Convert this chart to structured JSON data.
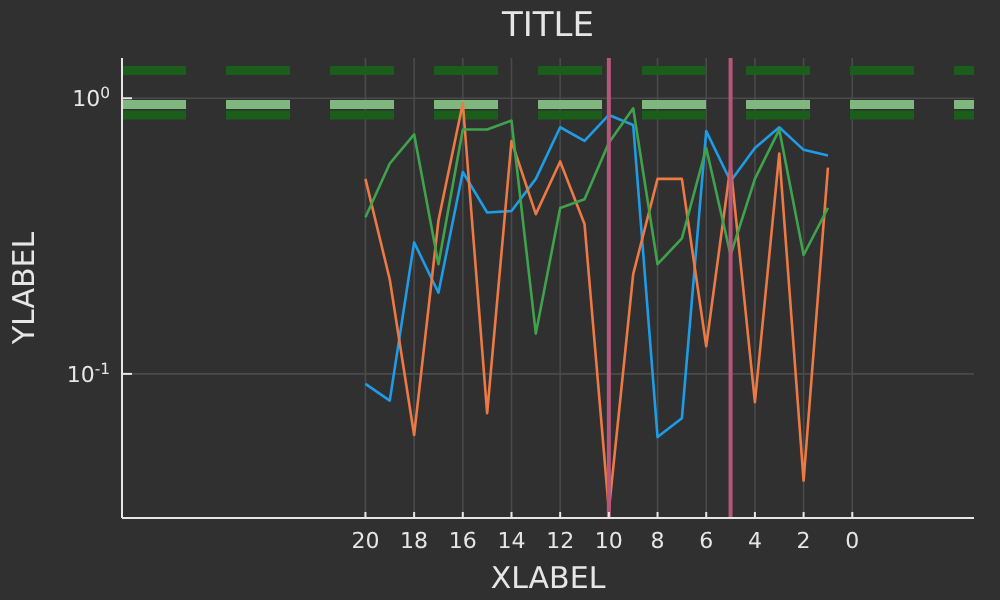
{
  "chart_data": {
    "type": "line",
    "title": "TITLE",
    "xlabel": "XLABEL",
    "ylabel": "YLABEL",
    "log": "y",
    "grid": true,
    "x": [
      20,
      19,
      18,
      17,
      16,
      15,
      14,
      13,
      12,
      11,
      10,
      9,
      8,
      7,
      6,
      5,
      4,
      3,
      2,
      1
    ],
    "series": [
      {
        "color": "#1f9ce6",
        "values": [
          0.092,
          0.08,
          0.3,
          0.197,
          0.54,
          0.385,
          0.39,
          0.51,
          0.785,
          0.7,
          0.87,
          0.8,
          0.059,
          0.069,
          0.76,
          0.5,
          0.66,
          0.785,
          0.65,
          0.62
        ]
      },
      {
        "color": "#ed7a45",
        "values": [
          0.51,
          0.22,
          0.06,
          0.36,
          0.96,
          0.072,
          0.7,
          0.38,
          0.59,
          0.35,
          0.032,
          0.23,
          0.51,
          0.51,
          0.126,
          0.57,
          0.079,
          0.63,
          0.041,
          0.56
        ]
      },
      {
        "color": "#3fa34d",
        "values": [
          0.37,
          0.58,
          0.74,
          0.25,
          0.77,
          0.77,
          0.83,
          0.14,
          0.4,
          0.43,
          0.69,
          0.92,
          0.25,
          0.31,
          0.66,
          0.27,
          0.51,
          0.77,
          0.27,
          0.4
        ]
      }
    ],
    "xlim": [
      30,
      -5
    ],
    "xticks": [
      20,
      18,
      16,
      14,
      12,
      10,
      8,
      6,
      4,
      2,
      0
    ],
    "ylim": [
      0.03,
      1.4
    ],
    "yticks": [
      {
        "value": 1,
        "label": "10$^{0}$"
      },
      {
        "value": 0.1,
        "label": "10$^{-1}$"
      }
    ],
    "ref_lines": [
      {
        "axis": "y",
        "value": 1.26,
        "color": "#1b5e1b",
        "line_style": "dashed"
      },
      {
        "axis": "y",
        "value": 0.87,
        "color": "#1b5e1b",
        "line_style": "dashed"
      },
      {
        "axis": "y",
        "value": 0.95,
        "color": "#7fb77f",
        "line_style": "dashed"
      },
      {
        "axis": "x",
        "value": 10,
        "color": "#b5577a",
        "line_style": "solid"
      },
      {
        "axis": "x",
        "value": 5,
        "color": "#b5577a",
        "line_style": "solid"
      }
    ]
  }
}
